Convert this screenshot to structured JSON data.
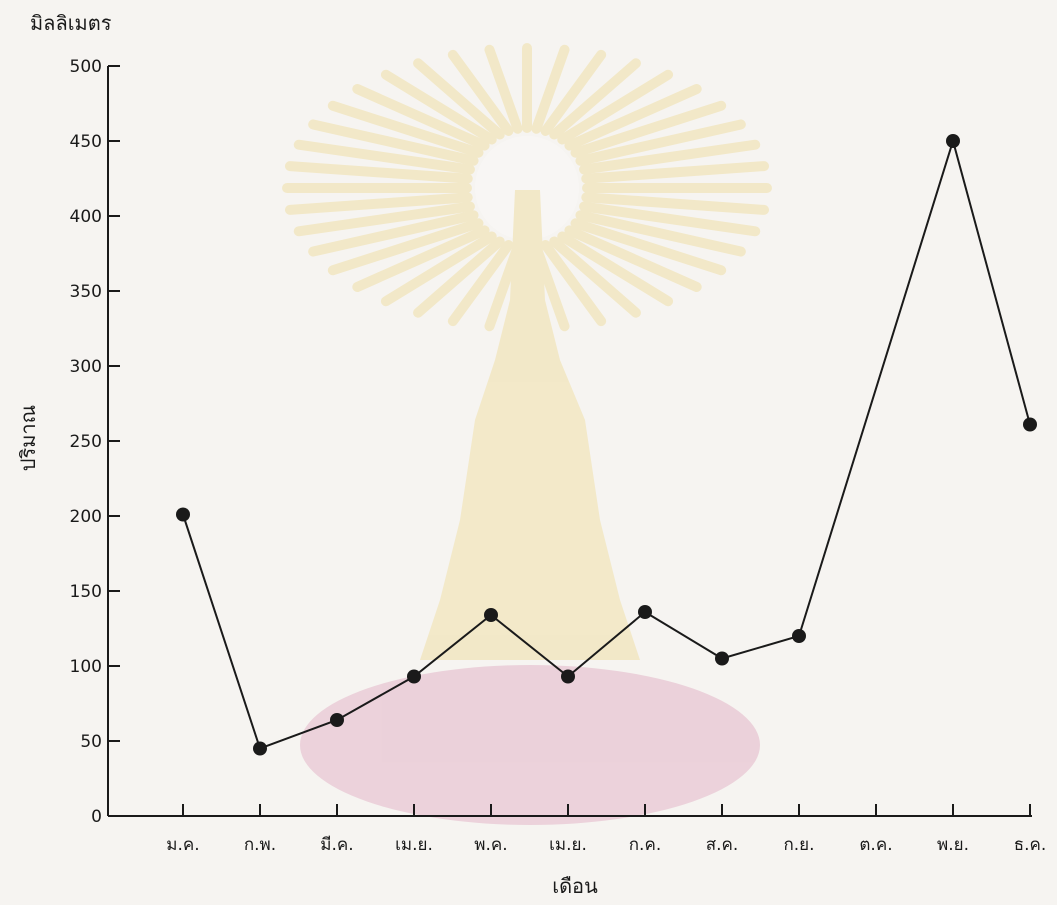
{
  "chart_data": {
    "type": "line",
    "title": "",
    "ylabel_unit": "มิลลิเมตร",
    "ylabel": "ปริมาณ",
    "xlabel": "เดือน",
    "ylim": [
      0,
      500
    ],
    "yticks": [
      0,
      50,
      100,
      150,
      200,
      250,
      300,
      350,
      400,
      450,
      500
    ],
    "categories": [
      "ม.ค.",
      "ก.พ.",
      "มี.ค.",
      "เม.ย.",
      "พ.ค.",
      "เม.ย.",
      "ก.ค.",
      "ส.ค.",
      "ก.ย.",
      "ต.ค.",
      "พ.ย.",
      "ธ.ค."
    ],
    "points": [
      {
        "category": "ม.ค.",
        "value": 201
      },
      {
        "category": "ก.พ.",
        "value": 45
      },
      {
        "category": "มี.ค.",
        "value": 64
      },
      {
        "category": "เม.ย.",
        "value": 93
      },
      {
        "category": "พ.ค.",
        "value": 134
      },
      {
        "category": "เม.ย.",
        "value": 93
      },
      {
        "category": "ก.ค.",
        "value": 136
      },
      {
        "category": "ส.ค.",
        "value": 105
      },
      {
        "category": "ก.ย.",
        "value": 120
      },
      {
        "category": "พ.ย.",
        "value": 450
      },
      {
        "category": "ธ.ค.",
        "value": 261
      }
    ],
    "line_color": "#1a1a1a",
    "grid": false,
    "legend": "none"
  }
}
